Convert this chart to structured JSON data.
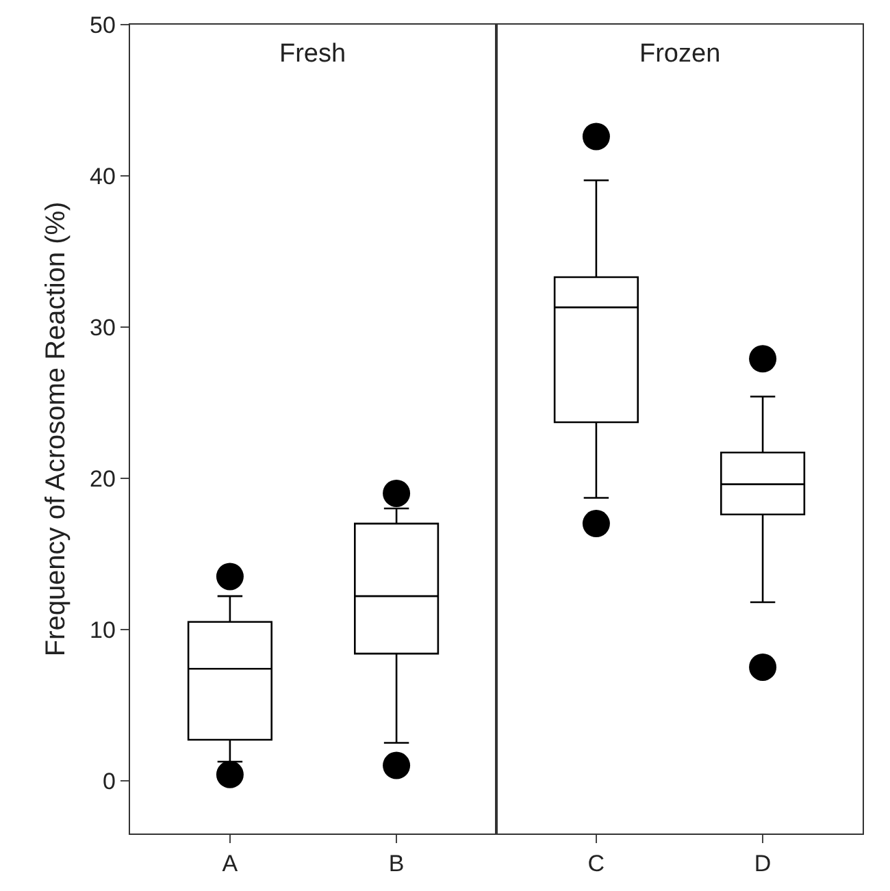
{
  "chart_data": [
    {
      "type": "box",
      "title": "Fresh",
      "ylabel": "Frequency of Acrosome Reaction (%)",
      "categories": [
        "A",
        "B"
      ],
      "ylim": [
        -3.5,
        50
      ],
      "yticks": [
        0,
        10,
        20,
        30,
        40,
        50
      ],
      "grid": false,
      "legend": false,
      "color": "#000000",
      "boxes": [
        {
          "low": 1.25,
          "q1": 2.7,
          "median": 7.4,
          "q3": 10.5,
          "high": 12.2,
          "outliers": [
            13.5,
            0.4
          ]
        },
        {
          "low": 2.5,
          "q1": 8.4,
          "median": 12.2,
          "q3": 17.0,
          "high": 18.0,
          "outliers": [
            19.0,
            1.0
          ]
        }
      ]
    },
    {
      "type": "box",
      "title": "Frozen",
      "categories": [
        "C",
        "D"
      ],
      "ylim": [
        -3.5,
        50
      ],
      "yticks": [
        0,
        10,
        20,
        30,
        40,
        50
      ],
      "tick_labels": "x",
      "grid": false,
      "legend": false,
      "color": "#000000",
      "boxes": [
        {
          "low": 18.7,
          "q1": 23.7,
          "median": 31.3,
          "q3": 33.3,
          "high": 39.7,
          "outliers": [
            42.6,
            17.0
          ]
        },
        {
          "low": 11.8,
          "q1": 17.6,
          "median": 19.6,
          "q3": 21.7,
          "high": 25.4,
          "outliers": [
            27.9,
            7.5
          ]
        }
      ]
    }
  ]
}
